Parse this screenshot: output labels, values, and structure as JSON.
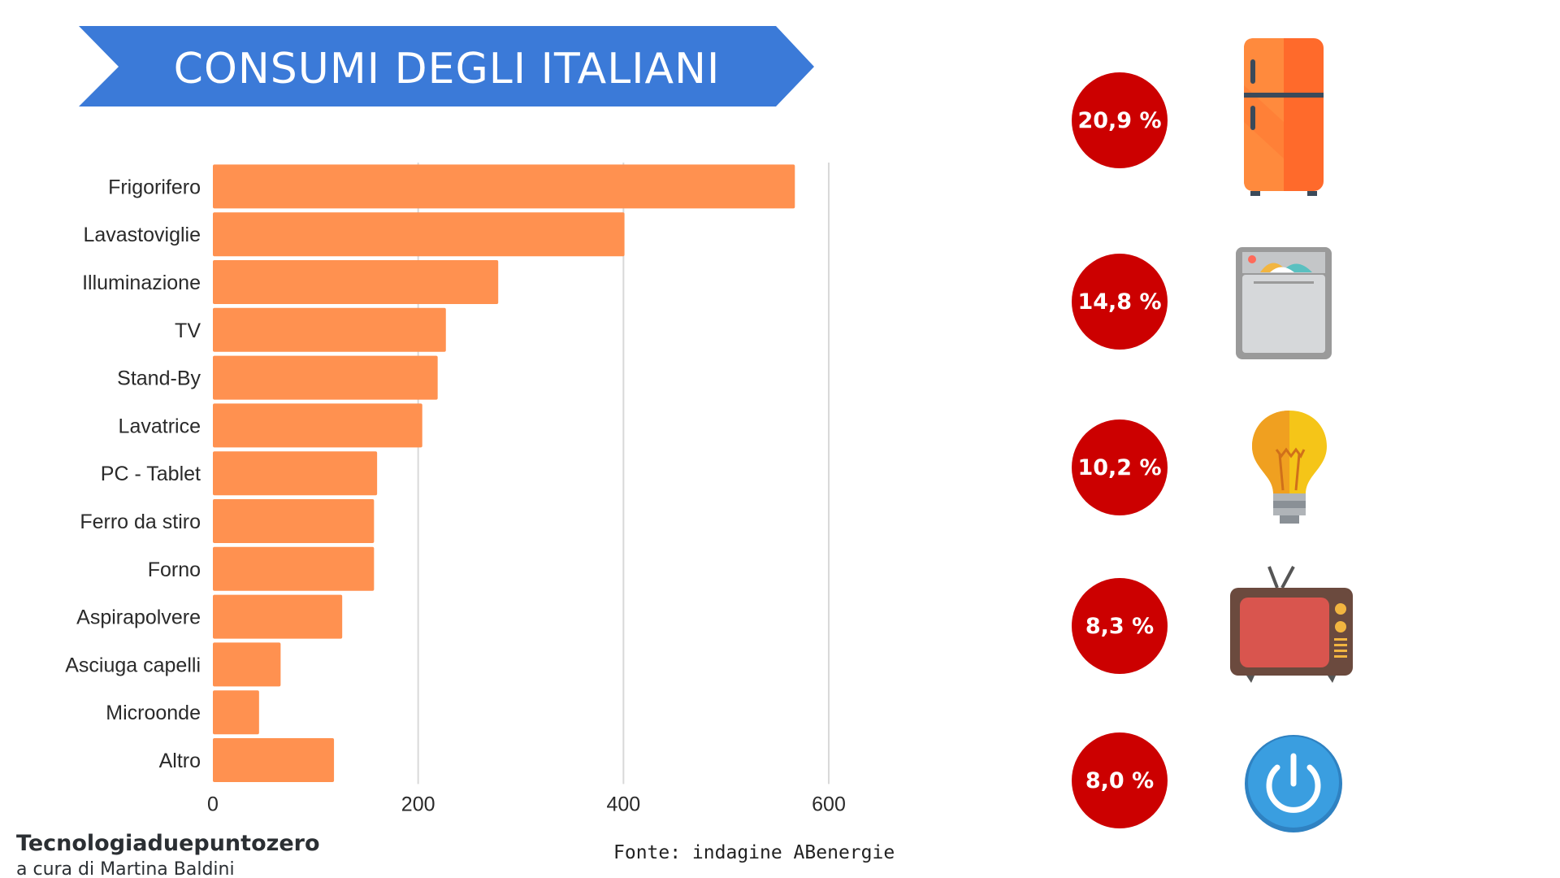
{
  "title": "CONSUMI DEGLI ITALIANI",
  "colors": {
    "banner": "#3b7ad8",
    "bar": "#ff9150",
    "circle": "#cc0000",
    "grid": "#d9d9d9"
  },
  "chart_data": {
    "type": "bar",
    "orientation": "horizontal",
    "categories": [
      "Frigorifero",
      "Lavastoviglie",
      "Illuminazione",
      "TV",
      "Stand-By",
      "Lavatrice",
      "PC - Tablet",
      "Ferro da stiro",
      "Forno",
      "Aspirapolvere",
      "Asciuga capelli",
      "Microonde",
      "Altro"
    ],
    "values": [
      567,
      401,
      278,
      227,
      219,
      204,
      160,
      157,
      157,
      126,
      66,
      45,
      118
    ],
    "xlim": [
      0,
      600
    ],
    "xticks": [
      0,
      200,
      400,
      600
    ],
    "xtick_labels": [
      "0",
      "200",
      "400",
      "600"
    ],
    "grid": true,
    "legend": "none"
  },
  "percentages": [
    {
      "label": "20,9 %",
      "icon": "fridge-icon"
    },
    {
      "label": "14,8 %",
      "icon": "dishwasher-icon"
    },
    {
      "label": "10,2 %",
      "icon": "lightbulb-icon"
    },
    {
      "label": "8,3 %",
      "icon": "tv-icon"
    },
    {
      "label": "8,0 %",
      "icon": "power-icon"
    }
  ],
  "footer": {
    "brand": "Tecnologiaduepuntozero",
    "byline": "a cura di Martina Baldini",
    "source": "Fonte: indagine ABenergie"
  }
}
